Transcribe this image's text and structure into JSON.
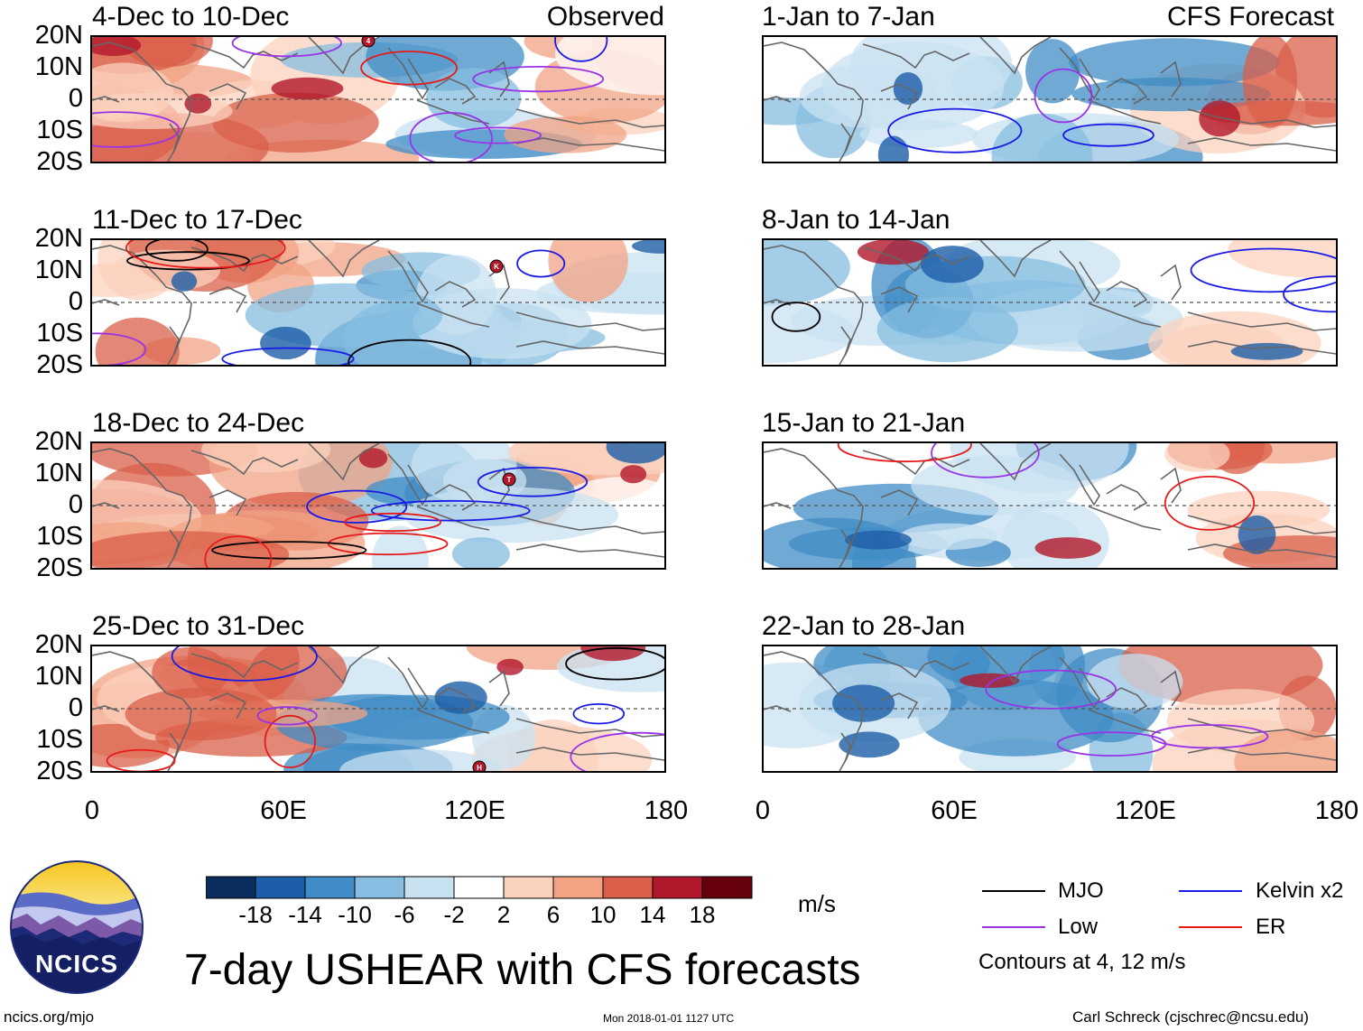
{
  "colors": {
    "mjo": "#000000",
    "kelvin": "#1a1ae6",
    "low": "#9933e6",
    "er": "#e61a1a",
    "palette": [
      "#0b2e5e",
      "#1d5ea8",
      "#3f8cc6",
      "#86bde0",
      "#c9e2f1",
      "#ffffff",
      "#fbd2be",
      "#f2a384",
      "#d95f4a",
      "#b2182b",
      "#67000d"
    ]
  },
  "rows_y": [
    "20N",
    "10N",
    "0",
    "10S",
    "20S"
  ],
  "x_ticks": [
    "0",
    "60E",
    "120E",
    "180"
  ],
  "observed": {
    "label": "Observed",
    "panels": [
      {
        "title": "4-Dec to 10-Dec"
      },
      {
        "title": "11-Dec to 17-Dec"
      },
      {
        "title": "18-Dec to 24-Dec"
      },
      {
        "title": "25-Dec to 31-Dec"
      }
    ]
  },
  "forecast": {
    "label": "CFS Forecast",
    "panels": [
      {
        "title": "1-Jan to 7-Jan"
      },
      {
        "title": "8-Jan to 14-Jan"
      },
      {
        "title": "15-Jan to 21-Jan"
      },
      {
        "title": "22-Jan to 28-Jan"
      }
    ]
  },
  "colorbar": {
    "labels": [
      "-18",
      "-14",
      "-10",
      "-6",
      "-2",
      "2",
      "6",
      "10",
      "14",
      "18"
    ],
    "units": "m/s"
  },
  "legend": {
    "mjo": "MJO",
    "kelvin": "Kelvin x2",
    "low": "Low",
    "er": "ER",
    "contours": "Contours at 4, 12 m/s"
  },
  "logo_text": "NCICS",
  "main_title": "7-day USHEAR with CFS forecasts",
  "footer": {
    "left": "ncics.org/mjo",
    "center": "Mon 2018-01-01 1127 UTC",
    "right": "Carl Schreck (cjschrec@ncsu.edu)"
  },
  "storm_markers": [
    "4",
    "K",
    "T",
    "H"
  ]
}
